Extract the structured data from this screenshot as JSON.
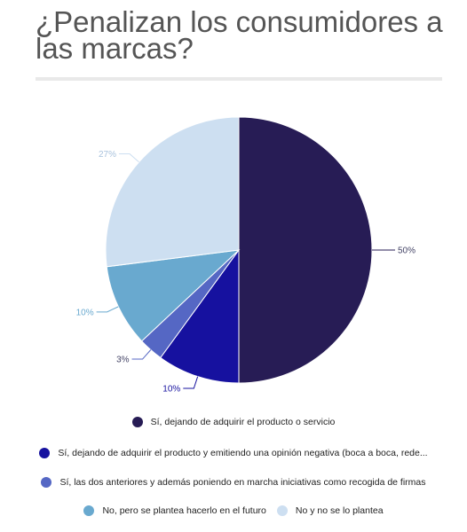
{
  "title": "¿Penalizan los consumidores a las marcas?",
  "chart_data": {
    "type": "pie",
    "title": "¿Penalizan los consumidores a las marcas?",
    "slices": [
      {
        "label": "Sí, dejando de adquirir el producto o servicio",
        "value": 50,
        "value_label": "50%",
        "color": "#271c55"
      },
      {
        "label": "Sí, dejando de adquirir el producto y emitiendo una opinión negativa (boca a boca, rede...",
        "value": 10,
        "value_label": "10%",
        "color": "#16119f"
      },
      {
        "label": "Sí, las dos anteriores y además poniendo en marcha iniciativas como recogida de firmas",
        "value": 3,
        "value_label": "3%",
        "color": "#5567c4"
      },
      {
        "label": "No, pero se plantea hacerlo en el futuro",
        "value": 10,
        "value_label": "10%",
        "color": "#69a9cf"
      },
      {
        "label": "No y no se lo plantea",
        "value": 27,
        "value_label": "27%",
        "color": "#cddff1"
      }
    ],
    "legend_position": "bottom"
  }
}
